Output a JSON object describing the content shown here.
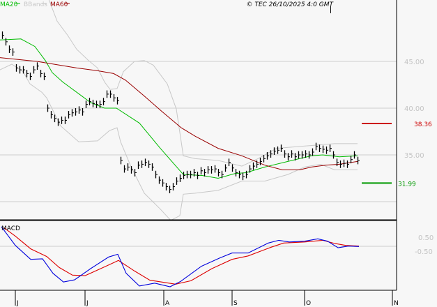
{
  "header": {
    "copyright": "© TEC 26/10/2025 4:0 GMT",
    "legend": [
      {
        "label": "MA20",
        "color": "#00bb00"
      },
      {
        "label": "BBands",
        "color": "#c8c8c8"
      },
      {
        "label": "MA60",
        "color": "#990000"
      }
    ]
  },
  "macd_panel": {
    "label": "MACD"
  },
  "chart_data": [
    {
      "type": "bar",
      "subtype": "ohlc-price",
      "x_unit": "trading day index",
      "ylim": [
        28.06,
        51.57
      ],
      "grid": true,
      "y_gridlines": [
        30,
        35,
        40,
        45
      ],
      "y_ticks": [
        {
          "value": 45,
          "label": "45.00"
        },
        {
          "value": 40,
          "label": "40.00"
        },
        {
          "value": 35,
          "label": "35.00"
        }
      ],
      "closes": [
        47.8,
        47.1,
        46.3,
        46.0,
        44.3,
        44.1,
        44.1,
        43.7,
        43.4,
        44.1,
        44.5,
        43.7,
        43.4,
        40.0,
        39.3,
        38.9,
        38.5,
        38.7,
        38.7,
        39.3,
        39.5,
        39.6,
        39.8,
        39.6,
        40.4,
        40.7,
        40.5,
        40.4,
        40.4,
        40.7,
        41.5,
        41.5,
        41.1,
        40.8,
        34.4,
        33.5,
        33.7,
        33.4,
        33.1,
        33.9,
        34.0,
        34.2,
        34.0,
        33.7,
        32.9,
        32.3,
        32.0,
        31.6,
        31.3,
        31.6,
        32.2,
        32.5,
        32.8,
        32.9,
        32.9,
        33.1,
        32.8,
        33.3,
        33.1,
        33.4,
        33.4,
        33.5,
        33.1,
        32.9,
        33.6,
        34.2,
        33.6,
        33.1,
        32.9,
        32.7,
        32.9,
        33.5,
        33.8,
        34.0,
        34.3,
        34.6,
        34.9,
        35.1,
        35.4,
        35.5,
        35.7,
        35.1,
        34.8,
        35.1,
        34.8,
        35.0,
        35.0,
        35.1,
        35.0,
        35.3,
        35.9,
        35.7,
        35.6,
        35.5,
        35.7,
        35.0,
        34.2,
        34.0,
        34.1,
        34.0,
        34.5,
        35.0,
        34.4
      ],
      "series": [
        {
          "name": "MA20",
          "color": "#00bb00",
          "points": [
            [
              -0.6,
              47.3
            ],
            [
              5.4,
              47.4
            ],
            [
              9.4,
              46.6
            ],
            [
              12.4,
              45.1
            ],
            [
              14.4,
              43.8
            ],
            [
              17.4,
              42.8
            ],
            [
              21.4,
              41.7
            ],
            [
              25.4,
              40.6
            ],
            [
              29.4,
              40.0
            ],
            [
              32.8,
              40.0
            ],
            [
              39.4,
              38.4
            ],
            [
              45.4,
              35.7
            ],
            [
              52,
              32.9
            ],
            [
              57.4,
              32.8
            ],
            [
              62,
              32.5
            ],
            [
              66.8,
              33.0
            ],
            [
              70,
              33.1
            ],
            [
              75.4,
              33.7
            ],
            [
              82,
              34.3
            ],
            [
              88.8,
              34.9
            ],
            [
              92,
              35.0
            ],
            [
              96.8,
              34.8
            ],
            [
              102,
              34.9
            ]
          ]
        },
        {
          "name": "MA60",
          "color": "#990000",
          "points": [
            [
              -0.6,
              45.4
            ],
            [
              10,
              45.0
            ],
            [
              21.4,
              44.3
            ],
            [
              27.4,
              44.0
            ],
            [
              32,
              43.7
            ],
            [
              35.4,
              43.0
            ],
            [
              40.8,
              41.3
            ],
            [
              46,
              39.6
            ],
            [
              51.4,
              37.9
            ],
            [
              55.4,
              37.0
            ],
            [
              62,
              35.7
            ],
            [
              68.8,
              34.9
            ],
            [
              75.4,
              33.9
            ],
            [
              80.4,
              33.4
            ],
            [
              85.4,
              33.4
            ],
            [
              88.8,
              33.7
            ],
            [
              92.8,
              33.9
            ],
            [
              96.8,
              34.0
            ],
            [
              102,
              34.3
            ]
          ]
        },
        {
          "name": "BBands",
          "band": "upper",
          "color": "#c8c8c8",
          "points": [
            [
              12,
              53
            ],
            [
              15.8,
              49.3
            ],
            [
              18.8,
              47.8
            ],
            [
              21.4,
              46.3
            ],
            [
              24.8,
              45.1
            ],
            [
              27.4,
              44.3
            ],
            [
              29.4,
              42.8
            ],
            [
              31,
              42.0
            ],
            [
              33,
              42.1
            ],
            [
              34.8,
              43.9
            ],
            [
              38,
              45.0
            ],
            [
              40.8,
              45.1
            ],
            [
              43.4,
              44.6
            ],
            [
              47.4,
              42.6
            ],
            [
              50,
              39.9
            ],
            [
              51.4,
              36.4
            ],
            [
              52,
              34.9
            ],
            [
              55.4,
              34.6
            ],
            [
              62,
              34.4
            ],
            [
              68.8,
              33.8
            ],
            [
              73.4,
              34.6
            ],
            [
              78.8,
              35.7
            ],
            [
              85.4,
              35.9
            ],
            [
              95.4,
              36.2
            ],
            [
              102,
              36.2
            ]
          ]
        },
        {
          "name": "BBands",
          "band": "lower",
          "color": "#c8c8c8",
          "points": [
            [
              -0.6,
              44.1
            ],
            [
              2.8,
              44.7
            ],
            [
              6,
              43.9
            ],
            [
              8,
              42.6
            ],
            [
              11.4,
              41.7
            ],
            [
              12.8,
              41.1
            ],
            [
              16.8,
              38.1
            ],
            [
              22,
              36.4
            ],
            [
              27.4,
              36.5
            ],
            [
              30.8,
              37.6
            ],
            [
              33,
              37.9
            ],
            [
              34,
              36.4
            ],
            [
              36.8,
              33.9
            ],
            [
              40.8,
              30.9
            ],
            [
              45.4,
              29.2
            ],
            [
              48.4,
              28.0
            ],
            [
              51,
              28.5
            ],
            [
              52,
              30.8
            ],
            [
              55.4,
              30.9
            ],
            [
              62,
              31.2
            ],
            [
              68.8,
              32.2
            ],
            [
              75.4,
              32.2
            ],
            [
              82,
              32.9
            ],
            [
              86.8,
              33.7
            ],
            [
              91.4,
              34.0
            ],
            [
              95.4,
              33.4
            ],
            [
              102,
              33.4
            ]
          ]
        }
      ],
      "levels": [
        {
          "value": 38.36,
          "label": "38.36",
          "color": "#cc0000"
        },
        {
          "value": 31.99,
          "label": "31.99",
          "color": "#009900"
        }
      ]
    },
    {
      "type": "line",
      "title": "MACD",
      "ylim": [
        -2.4,
        1.4
      ],
      "y_ticks": [
        {
          "value": 0.5,
          "label": "0.50"
        },
        {
          "value": -0.5,
          "label": "-0.50"
        }
      ],
      "zero_line": true,
      "series": [
        {
          "color": "#0000dd",
          "points": [
            [
              -0.2,
              1.08
            ],
            [
              3.8,
              0.05
            ],
            [
              8.2,
              -0.72
            ],
            [
              11.6,
              -0.69
            ],
            [
              14.6,
              -1.49
            ],
            [
              17.6,
              -1.97
            ],
            [
              20.8,
              -1.85
            ],
            [
              25.4,
              -1.23
            ],
            [
              30.6,
              -0.59
            ],
            [
              33.2,
              -0.44
            ],
            [
              35.6,
              -1.49
            ],
            [
              39.4,
              -2.19
            ],
            [
              43.8,
              -2.03
            ],
            [
              48.2,
              -2.23
            ],
            [
              51.2,
              -1.94
            ],
            [
              57.2,
              -1.1
            ],
            [
              62.4,
              -0.65
            ],
            [
              66,
              -0.37
            ],
            [
              70.6,
              -0.37
            ],
            [
              76.4,
              0.18
            ],
            [
              79.4,
              0.33
            ],
            [
              82.4,
              0.24
            ],
            [
              86.8,
              0.28
            ],
            [
              90.6,
              0.41
            ],
            [
              93.4,
              0.28
            ],
            [
              96.4,
              -0.08
            ],
            [
              99.4,
              0.01
            ],
            [
              102.4,
              -0.01
            ]
          ]
        },
        {
          "color": "#dd0000",
          "points": [
            [
              0.6,
              1.01
            ],
            [
              3.8,
              0.56
            ],
            [
              8.2,
              -0.14
            ],
            [
              12.8,
              -0.56
            ],
            [
              16.4,
              -1.17
            ],
            [
              20.2,
              -1.59
            ],
            [
              23.8,
              -1.62
            ],
            [
              29,
              -1.17
            ],
            [
              33.4,
              -0.78
            ],
            [
              38,
              -1.36
            ],
            [
              42.4,
              -1.87
            ],
            [
              49.8,
              -2.09
            ],
            [
              54.2,
              -1.9
            ],
            [
              60.2,
              -1.23
            ],
            [
              66,
              -0.72
            ],
            [
              70.6,
              -0.53
            ],
            [
              77.2,
              -0.05
            ],
            [
              80.8,
              0.18
            ],
            [
              86.8,
              0.24
            ],
            [
              92,
              0.33
            ],
            [
              95.6,
              0.15
            ],
            [
              98.6,
              0.05
            ],
            [
              102.4,
              0.01
            ]
          ]
        }
      ]
    }
  ],
  "x_axis": {
    "ticks": [
      {
        "at": 3.8,
        "label": "J"
      },
      {
        "at": 23.8,
        "label": "J"
      },
      {
        "at": 46.4,
        "label": "A"
      },
      {
        "at": 66,
        "label": "S"
      },
      {
        "at": 86.8,
        "label": "O"
      },
      {
        "at": 112,
        "label": "N"
      }
    ]
  }
}
